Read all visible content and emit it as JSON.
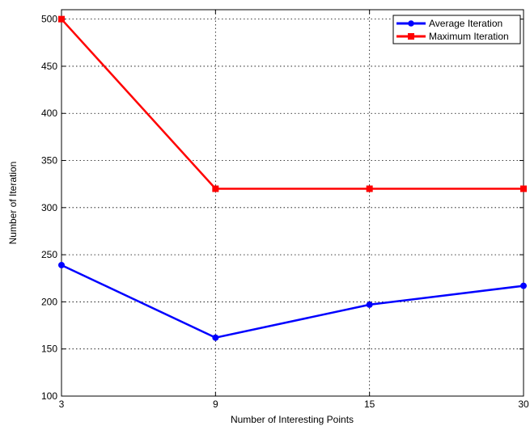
{
  "chart_data": {
    "type": "line",
    "x": [
      3,
      9,
      15,
      30
    ],
    "x_tick_labels": [
      "3",
      "9",
      "15",
      "30"
    ],
    "y_ticks": [
      100,
      150,
      200,
      250,
      300,
      350,
      400,
      450,
      500
    ],
    "ylim": [
      100,
      510
    ],
    "xlabel": "Number of Interesting Points",
    "ylabel": "Number of Iteration",
    "grid": true,
    "legend_position": "top-right",
    "series": [
      {
        "name": "Average Iteration",
        "values": [
          239,
          162,
          197,
          217
        ],
        "color": "#0000ff",
        "marker": "circle"
      },
      {
        "name": "Maximum Iteration",
        "values": [
          500,
          320,
          320,
          320
        ],
        "color": "#ff0000",
        "marker": "square"
      }
    ]
  }
}
